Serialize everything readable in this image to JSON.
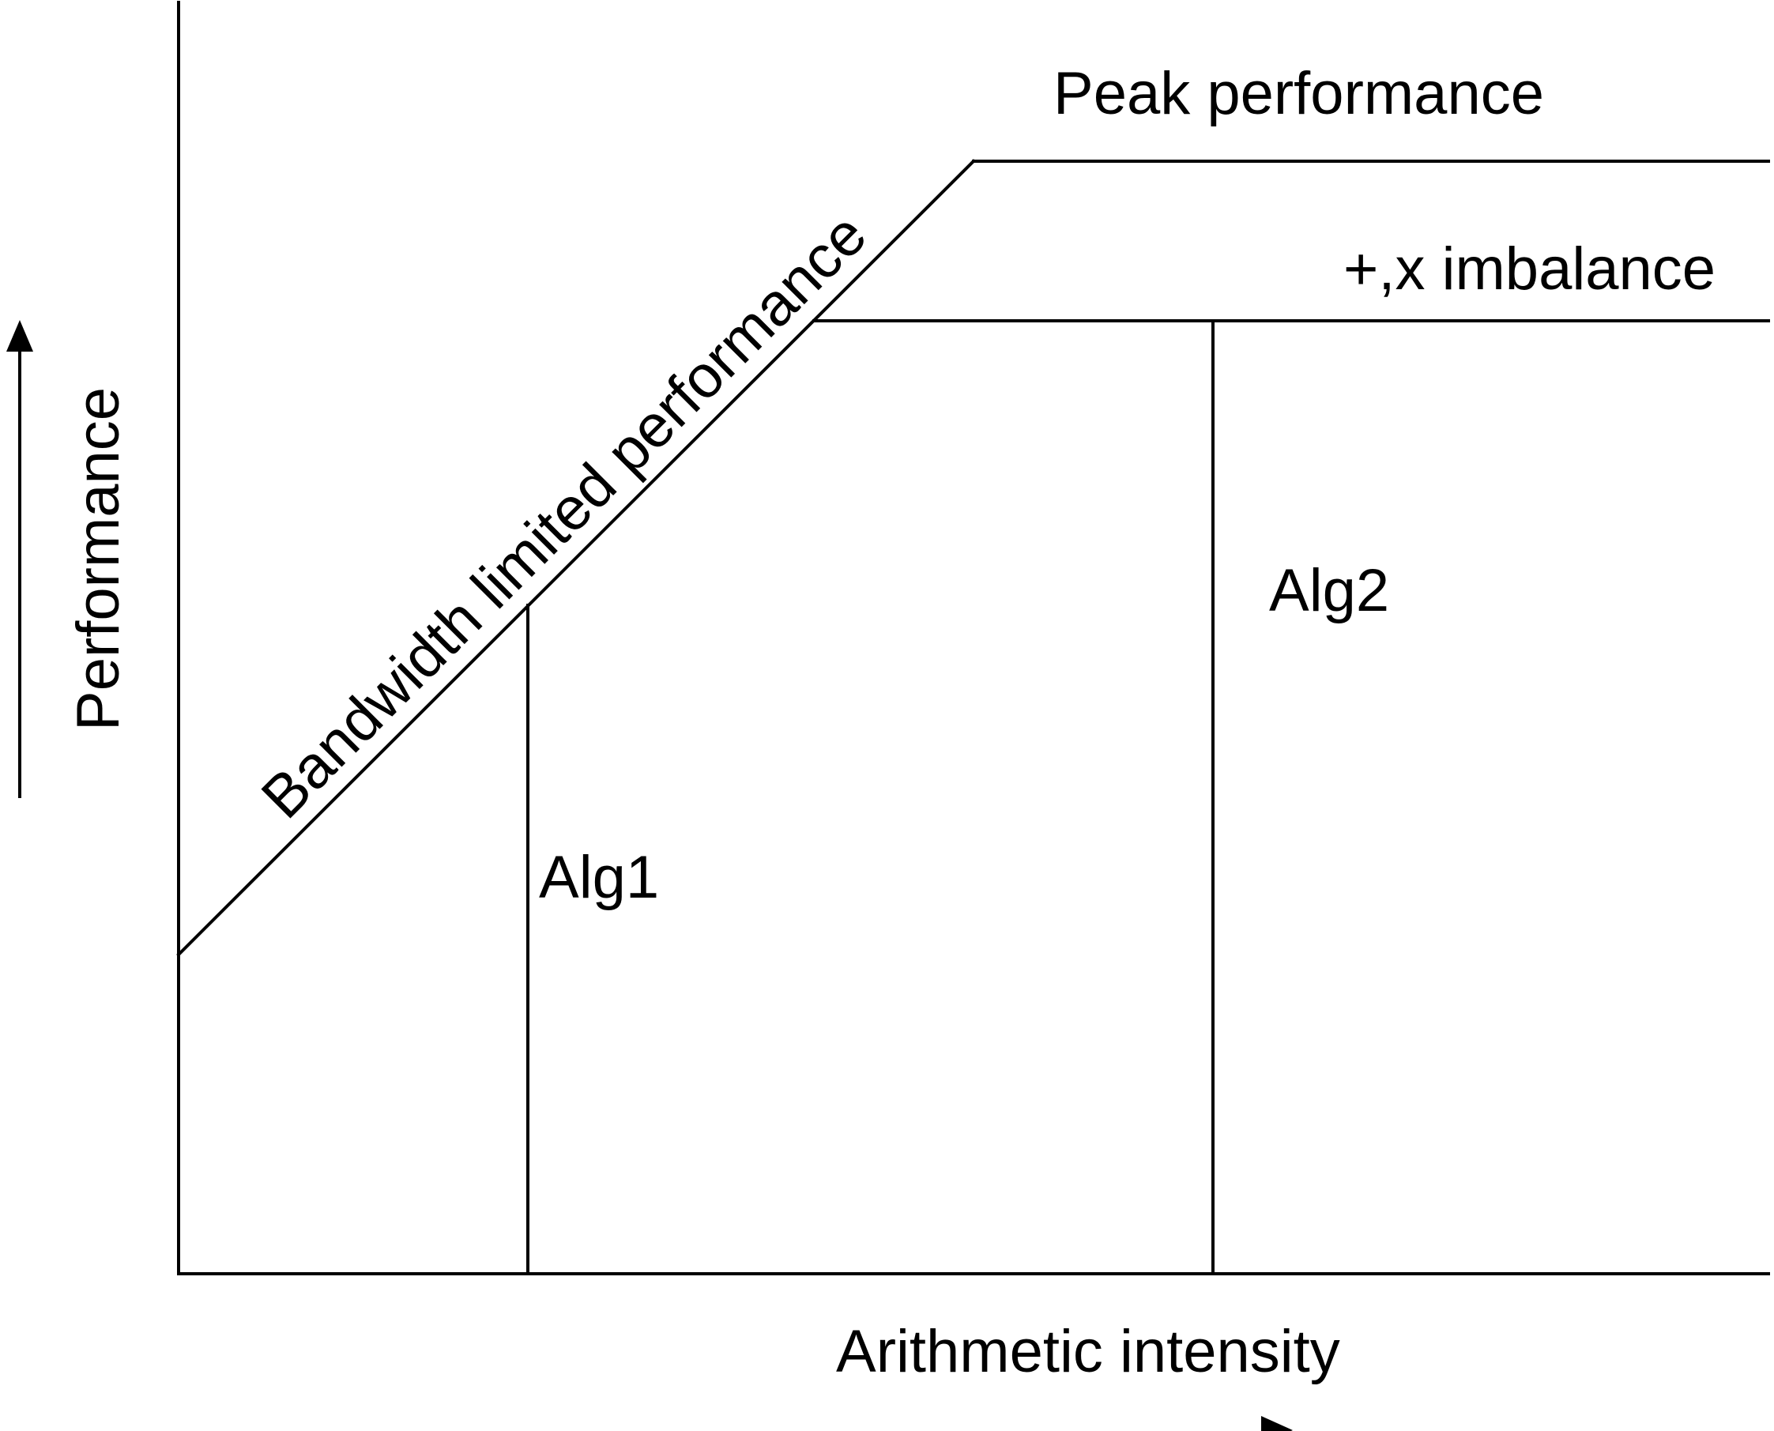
{
  "diagram": {
    "type": "roofline",
    "labels": {
      "peak": "Peak performance",
      "imbalance": "+,x imbalance",
      "bandwidth": "Bandwidth limited performance",
      "alg1": "Alg1",
      "alg2": "Alg2",
      "xaxis": "Arithmetic intensity",
      "yaxis": "Performance"
    },
    "colors": {
      "line": "#000000",
      "background": "#ffffff"
    }
  }
}
